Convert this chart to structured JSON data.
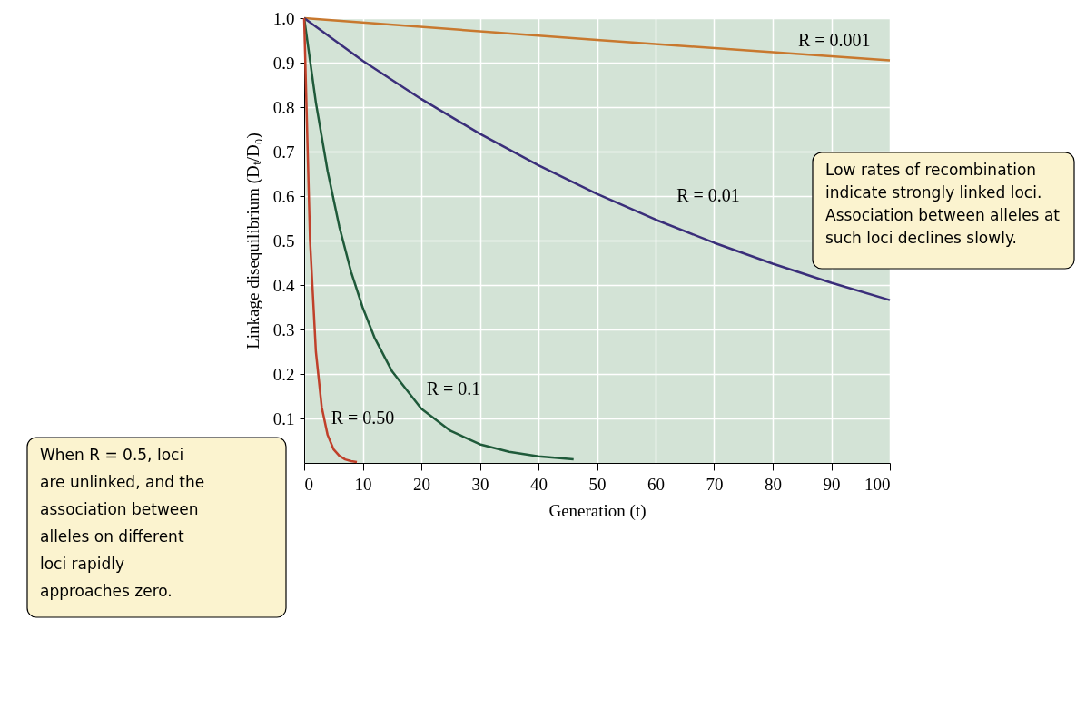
{
  "chart_data": {
    "type": "line",
    "xlabel": "Generation (t)",
    "ylabel": "Linkage disequilibrium (Dₜ/D₀)",
    "xlim": [
      0,
      100
    ],
    "ylim": [
      0,
      1.0
    ],
    "xticks": [
      0,
      10,
      20,
      30,
      40,
      50,
      60,
      70,
      80,
      90,
      100
    ],
    "yticks": [
      0.1,
      0.2,
      0.3,
      0.4,
      0.5,
      0.6,
      0.7,
      0.8,
      0.9,
      {
        "value": 1.0,
        "label": "1.0"
      }
    ],
    "grid": true,
    "marker": "none",
    "line_style": "solid",
    "series": [
      {
        "name": "R = 0.001",
        "color": "#c8782e",
        "x": [
          0,
          50,
          100
        ],
        "values": [
          1.0,
          0.951,
          0.905
        ]
      },
      {
        "name": "R = 0.01",
        "color": "#3a2e7a",
        "x": [
          0,
          10,
          20,
          30,
          40,
          50,
          60,
          70,
          80,
          90,
          100
        ],
        "values": [
          1.0,
          0.904,
          0.818,
          0.74,
          0.669,
          0.605,
          0.547,
          0.495,
          0.448,
          0.405,
          0.366
        ]
      },
      {
        "name": "R = 0.1",
        "color": "#1f5a3a",
        "x": [
          0,
          2,
          4,
          6,
          8,
          10,
          12,
          15,
          20,
          25,
          30,
          35,
          40,
          46
        ],
        "values": [
          1.0,
          0.81,
          0.656,
          0.531,
          0.43,
          0.349,
          0.282,
          0.206,
          0.122,
          0.072,
          0.042,
          0.025,
          0.015,
          0.008
        ]
      },
      {
        "name": "R = 0.50",
        "color": "#c0402a",
        "x": [
          0,
          1,
          2,
          3,
          4,
          5,
          6,
          7,
          8,
          9
        ],
        "values": [
          1.0,
          0.5,
          0.25,
          0.125,
          0.063,
          0.031,
          0.016,
          0.008,
          0.004,
          0.002
        ]
      }
    ],
    "annotations": [
      "Low rates of recombination indicate strongly linked loci. Association between alleles at such loci declines slowly.",
      "When R = 0.5, loci are unlinked, and the association between alleles on different loci rapidly approaches zero."
    ]
  }
}
